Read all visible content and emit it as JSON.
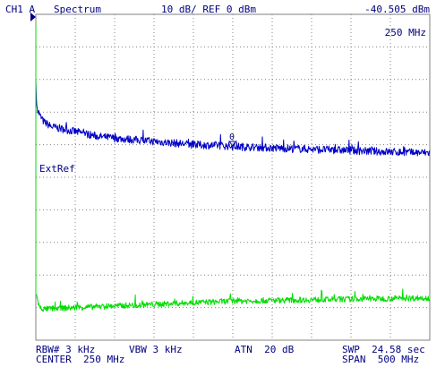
{
  "header": {
    "channel": "CH1 A",
    "mode": "Spectrum",
    "scale_ref": "10 dB/ REF 0 dBm",
    "marker_level": "-40.505 dBm",
    "marker_freq": "250 MHz"
  },
  "markers": {
    "marker_symbol": "0",
    "extref_label": "ExtRef"
  },
  "footer": {
    "rbw": "RBW# 3 kHz",
    "vbw": "VBW 3 kHz",
    "atn": "ATN  20 dB",
    "swp": "SWP  24.58 sec",
    "center": "CENTER  250 MHz",
    "span": "SPAN  500 MHz"
  },
  "colors": {
    "trace_blue": "#0000c8",
    "trace_green": "#00dd00",
    "grid": "#808080",
    "text": "#000080"
  },
  "chart_data": {
    "type": "line",
    "xlim": [
      0,
      500
    ],
    "ylim": [
      -100,
      0
    ],
    "x_unit": "MHz",
    "y_unit": "dBm",
    "grid": true,
    "series": [
      {
        "x": [
          0,
          0,
          1,
          5,
          10,
          20,
          40,
          60,
          80,
          100,
          125,
          150,
          175,
          200,
          225,
          250,
          275,
          300,
          325,
          350,
          375,
          400,
          425,
          450,
          475,
          500
        ],
        "y": [
          -10,
          -20,
          -28,
          -31,
          -33,
          -34.5,
          -35.5,
          -36.5,
          -37.5,
          -38,
          -38.5,
          -39,
          -39.5,
          -40,
          -40.2,
          -40.5,
          -40.8,
          -41,
          -41.2,
          -41.4,
          -41.6,
          -41.8,
          -42,
          -42.2,
          -42.4,
          -42.5
        ]
      },
      {
        "x": [
          0,
          0,
          1,
          3,
          5,
          10,
          20,
          50,
          100,
          150,
          200,
          250,
          300,
          350,
          400,
          450,
          500
        ],
        "y": [
          -3,
          -86,
          -86,
          -88.5,
          -90,
          -90.5,
          -90.3,
          -90,
          -89.5,
          -89,
          -88.5,
          -88,
          -87.8,
          -87.6,
          -87.4,
          -87.2,
          -87
        ]
      }
    ]
  }
}
